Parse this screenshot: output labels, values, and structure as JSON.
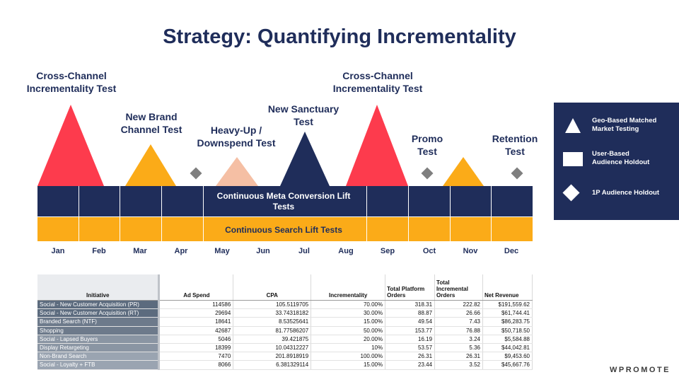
{
  "slide": {
    "title": "Strategy: Quantifying Incrementality",
    "brand": "WPROMOTE"
  },
  "tests": [
    {
      "label_line1": "Cross-Channel",
      "label_line2": "Incrementality Test",
      "shape": "triangle",
      "color": "#fd3b4d"
    },
    {
      "label_line1": "New Brand",
      "label_line2": "Channel Test",
      "shape": "triangle",
      "color": "#fbab18"
    },
    {
      "label_line1": "",
      "label_line2": "",
      "shape": "diamond",
      "color": "#7f7f7f"
    },
    {
      "label_line1": "Heavy-Up /",
      "label_line2": "Downspend Test",
      "shape": "triangle",
      "color": "#f5bfa4"
    },
    {
      "label_line1": "New Sanctuary",
      "label_line2": "Test",
      "shape": "triangle",
      "color": "#1f2d5a"
    },
    {
      "label_line1": "Cross-Channel",
      "label_line2": "Incrementality Test",
      "shape": "triangle",
      "color": "#fd3b4d"
    },
    {
      "label_line1": "Promo",
      "label_line2": "Test",
      "shape": "diamond",
      "color": "#7f7f7f"
    },
    {
      "label_line1": "",
      "label_line2": "",
      "shape": "triangle",
      "color": "#fbab18"
    },
    {
      "label_line1": "Retention",
      "label_line2": "Test",
      "shape": "diamond",
      "color": "#7f7f7f"
    }
  ],
  "bands": {
    "meta_line1": "Continuous Meta Conversion Lift",
    "meta_line2": "Tests",
    "search": "Continuous Search Lift Tests"
  },
  "months": [
    "Jan",
    "Feb",
    "Mar",
    "Apr",
    "May",
    "Jun",
    "Jul",
    "Aug",
    "Sep",
    "Oct",
    "Nov",
    "Dec"
  ],
  "legend": {
    "items": [
      {
        "icon": "triangle-icon",
        "line1": "Geo-Based Matched",
        "line2": "Market Testing"
      },
      {
        "icon": "square-icon",
        "line1": "User-Based",
        "line2": "Audience Holdout"
      },
      {
        "icon": "diamond-icon",
        "line1": "1P Audience Holdout",
        "line2": ""
      }
    ]
  },
  "table": {
    "headers": {
      "initiative": "Initiative",
      "ad_spend": "Ad Spend",
      "cpa": "CPA",
      "incrementality": "Incrementality",
      "platform_orders_1": "Total Platform",
      "platform_orders_2": "Orders",
      "incremental_orders_1": "Total",
      "incremental_orders_2": "Incremental",
      "incremental_orders_3": "Orders",
      "net_revenue": "Net Revenue"
    },
    "rows": [
      {
        "initiative": "Social - New Customer Acquisition (PR)",
        "ad_spend": "114586",
        "cpa": "105.5119705",
        "incrementality": "70.00%",
        "platform_orders": "318.31",
        "incremental_orders": "222.82",
        "net_revenue": "$191,559.62"
      },
      {
        "initiative": "Social - New Customer Acquisition (RT)",
        "ad_spend": "29694",
        "cpa": "33.74318182",
        "incrementality": "30.00%",
        "platform_orders": "88.87",
        "incremental_orders": "26.66",
        "net_revenue": "$61,744.41"
      },
      {
        "initiative": "Branded Search (NTF)",
        "ad_spend": "18641",
        "cpa": "8.53525641",
        "incrementality": "15.00%",
        "platform_orders": "49.54",
        "incremental_orders": "7.43",
        "net_revenue": "$86,283.75"
      },
      {
        "initiative": "Shopping",
        "ad_spend": "42687",
        "cpa": "81.77586207",
        "incrementality": "50.00%",
        "platform_orders": "153.77",
        "incremental_orders": "76.88",
        "net_revenue": "$50,718.50"
      },
      {
        "initiative": "Social - Lapsed Buyers",
        "ad_spend": "5046",
        "cpa": "39.421875",
        "incrementality": "20.00%",
        "platform_orders": "16.19",
        "incremental_orders": "3.24",
        "net_revenue": "$5,584.88"
      },
      {
        "initiative": "Display Retargeting",
        "ad_spend": "18399",
        "cpa": "10.04312227",
        "incrementality": "10%",
        "platform_orders": "53.57",
        "incremental_orders": "5.36",
        "net_revenue": "$44,042.81"
      },
      {
        "initiative": "Non-Brand Search",
        "ad_spend": "7470",
        "cpa": "201.8918919",
        "incrementality": "100.00%",
        "platform_orders": "26.31",
        "incremental_orders": "26.31",
        "net_revenue": "$9,453.60"
      },
      {
        "initiative": "Social - Loyalty + FTB",
        "ad_spend": "8066",
        "cpa": "6.381329114",
        "incrementality": "15.00%",
        "platform_orders": "23.44",
        "incremental_orders": "3.52",
        "net_revenue": "$45,667.76"
      }
    ]
  }
}
